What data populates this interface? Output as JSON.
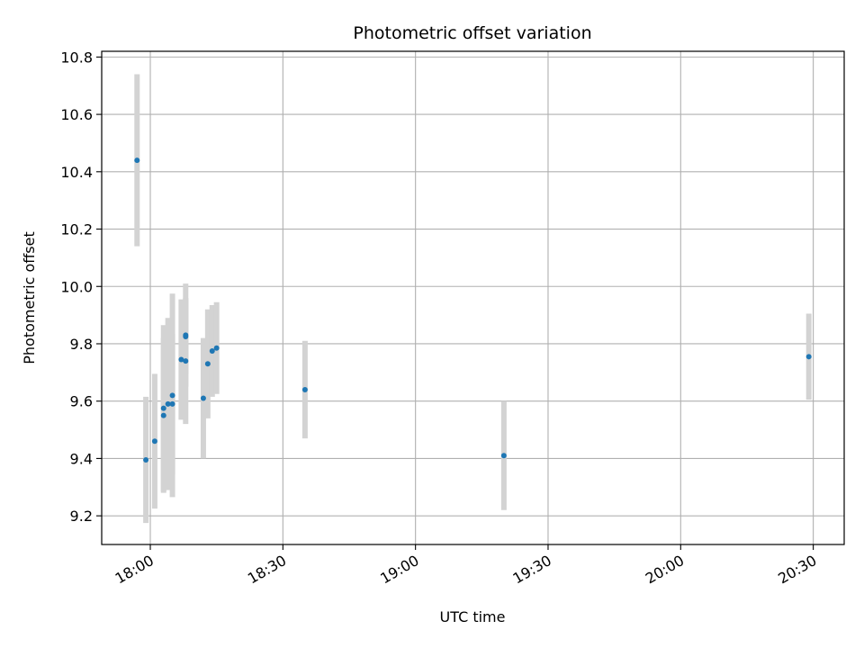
{
  "chart_data": {
    "type": "scatter",
    "title": "Photometric offset variation",
    "xlabel": "UTC time",
    "ylabel": "Photometric offset",
    "x_ticks": [
      "18:00",
      "18:30",
      "19:00",
      "19:30",
      "20:00",
      "20:30"
    ],
    "y_ticks": [
      "9.2",
      "9.4",
      "9.6",
      "9.8",
      "10.0",
      "10.2",
      "10.4",
      "10.6",
      "10.8"
    ],
    "xlim": [
      "17:49",
      "20:37"
    ],
    "ylim": [
      9.1,
      10.82
    ],
    "grid": true,
    "point_color": "#1f77b4",
    "errorbar_color": "#d3d3d3",
    "points": [
      {
        "x": "17:57",
        "y": 10.44,
        "err": 0.3
      },
      {
        "x": "17:59",
        "y": 9.395,
        "err": 0.22
      },
      {
        "x": "18:01",
        "y": 9.46,
        "err": 0.235
      },
      {
        "x": "18:03",
        "y": 9.55,
        "err": 0.27
      },
      {
        "x": "18:03",
        "y": 9.575,
        "err": 0.29
      },
      {
        "x": "18:04",
        "y": 9.59,
        "err": 0.3
      },
      {
        "x": "18:05",
        "y": 9.59,
        "err": 0.245
      },
      {
        "x": "18:05",
        "y": 9.62,
        "err": 0.355
      },
      {
        "x": "18:07",
        "y": 9.745,
        "err": 0.21
      },
      {
        "x": "18:08",
        "y": 9.74,
        "err": 0.22
      },
      {
        "x": "18:08",
        "y": 9.825,
        "err": 0.13
      },
      {
        "x": "18:08",
        "y": 9.83,
        "err": 0.18
      },
      {
        "x": "18:12",
        "y": 9.61,
        "err": 0.21
      },
      {
        "x": "18:13",
        "y": 9.73,
        "err": 0.19
      },
      {
        "x": "18:14",
        "y": 9.775,
        "err": 0.16
      },
      {
        "x": "18:15",
        "y": 9.785,
        "err": 0.16
      },
      {
        "x": "18:35",
        "y": 9.64,
        "err": 0.17
      },
      {
        "x": "19:20",
        "y": 9.41,
        "err": 0.19
      },
      {
        "x": "20:29",
        "y": 9.755,
        "err": 0.15
      }
    ]
  }
}
